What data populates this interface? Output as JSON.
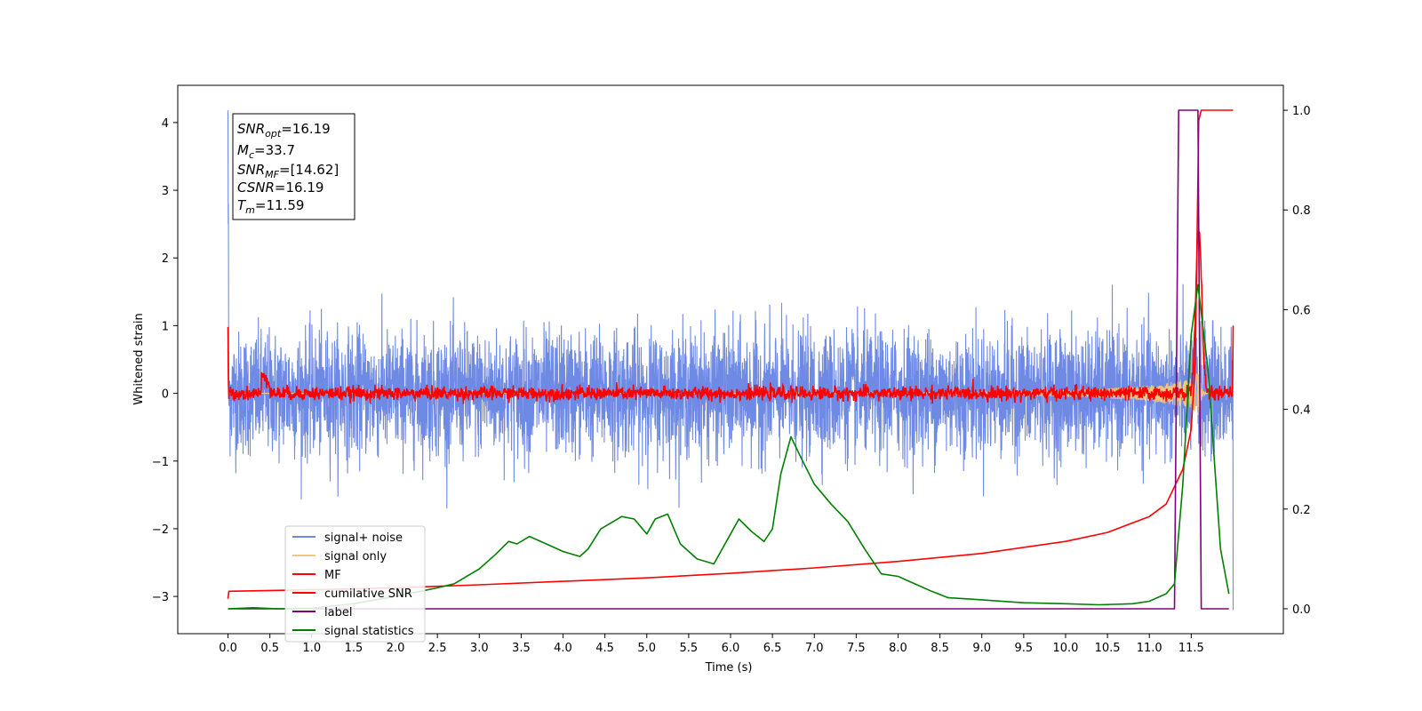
{
  "chart_data": {
    "type": "line",
    "xlabel": "Time (s)",
    "ylabel": "Whitened strain",
    "xlim": [
      -0.6,
      12.6
    ],
    "ylim_left": [
      -3.55,
      4.55
    ],
    "ylim_right": [
      -0.05,
      1.05
    ],
    "x_ticks": [
      0.0,
      0.5,
      1.0,
      1.5,
      2.0,
      2.5,
      3.0,
      3.5,
      4.0,
      4.5,
      5.0,
      5.5,
      6.0,
      6.5,
      7.0,
      7.5,
      8.0,
      8.5,
      9.0,
      9.5,
      10.0,
      10.5,
      11.0,
      11.5
    ],
    "x_tick_labels": [
      "0.0",
      "0.5",
      "1.0",
      "1.5",
      "2.0",
      "2.5",
      "3.0",
      "3.5",
      "4.0",
      "4.5",
      "5.0",
      "5.5",
      "6.0",
      "6.5",
      "7.0",
      "7.5",
      "8.0",
      "8.5",
      "9.0",
      "9.5",
      "10.0",
      "10.5",
      "11.0",
      "11.5"
    ],
    "y_left_ticks": [
      -3,
      -2,
      -1,
      0,
      1,
      2,
      3,
      4
    ],
    "y_left_tick_labels": [
      "−3",
      "−2",
      "−1",
      "0",
      "1",
      "2",
      "3",
      "4"
    ],
    "y_right_ticks": [
      0.0,
      0.2,
      0.4,
      0.6,
      0.8,
      1.0
    ],
    "y_right_tick_labels": [
      "0.0",
      "0.2",
      "0.4",
      "0.6",
      "0.8",
      "1.0"
    ],
    "grid": false,
    "legend_position": "lower-left",
    "info_box": {
      "snr_opt_label": "SNR",
      "snr_opt_sub": "opt",
      "snr_opt_value": "=16.19",
      "mc_label": "M",
      "mc_sub": "c",
      "mc_value": "=33.7",
      "snr_mf_label": "SNR",
      "snr_mf_sub": "MF",
      "snr_mf_value": "=[14.62]",
      "csnr_label": "CSNR",
      "csnr_value": "=16.19",
      "tm_label": "T",
      "tm_sub": "m",
      "tm_value": "=11.59"
    },
    "series": [
      {
        "name": "signal+ noise",
        "color": "#6f8ae4",
        "axis": "left",
        "description_of_shape": "white noise with std approx 0.45, spanning about -1.7 to 1.8; initial spike near 4.2 at t=0 and drop to about -3.2 at t=12",
        "noise_std": 0.45,
        "x_range": [
          0.0,
          12.0
        ]
      },
      {
        "name": "signal only",
        "color": "#f5c77e",
        "axis": "left",
        "x_range": [
          0.0,
          12.0
        ],
        "chirp_peak_time": 11.59,
        "chirp_peak_amplitude": 0.35
      },
      {
        "name": "MF",
        "color": "#ff0000",
        "axis": "left",
        "x_range": [
          0.0,
          12.0
        ],
        "noise_std": 0.05,
        "start_value": 0.98,
        "bump_x": [
          0.4,
          0.5
        ],
        "bump_value": 0.3,
        "peak_time": 11.59,
        "peak_value": 2.45,
        "end_value": 1.0
      },
      {
        "name": "cumilative SNR",
        "color": "#ff0000",
        "axis": "right",
        "x": [
          0.0,
          0.01,
          1.0,
          2.0,
          3.0,
          4.0,
          5.0,
          6.0,
          7.0,
          8.0,
          9.0,
          10.0,
          10.5,
          11.0,
          11.2,
          11.4,
          11.5,
          11.55,
          11.59,
          11.62,
          12.0
        ],
        "y": [
          0.02,
          0.035,
          0.038,
          0.042,
          0.048,
          0.055,
          0.062,
          0.071,
          0.082,
          0.095,
          0.111,
          0.135,
          0.153,
          0.185,
          0.21,
          0.28,
          0.36,
          0.5,
          0.98,
          1.0,
          1.0
        ]
      },
      {
        "name": "label",
        "color": "#800080",
        "axis": "right",
        "x": [
          0.0,
          11.3,
          11.35,
          11.58,
          11.62,
          11.95
        ],
        "y": [
          0.0,
          0.0,
          1.0,
          1.0,
          0.0,
          0.0
        ]
      },
      {
        "name": "signal statistics",
        "color": "#008000",
        "axis": "right",
        "x": [
          0.0,
          0.3,
          0.6,
          1.0,
          1.5,
          2.0,
          2.3,
          2.5,
          2.7,
          3.0,
          3.2,
          3.35,
          3.45,
          3.6,
          3.8,
          4.0,
          4.2,
          4.3,
          4.45,
          4.6,
          4.7,
          4.85,
          5.0,
          5.1,
          5.25,
          5.4,
          5.6,
          5.8,
          6.0,
          6.1,
          6.25,
          6.4,
          6.5,
          6.6,
          6.72,
          6.85,
          7.0,
          7.2,
          7.4,
          7.6,
          7.8,
          8.0,
          8.2,
          8.4,
          8.6,
          8.8,
          9.0,
          9.5,
          10.0,
          10.4,
          10.8,
          11.0,
          11.2,
          11.3,
          11.4,
          11.5,
          11.58,
          11.7,
          11.85,
          11.95
        ],
        "y": [
          0.0,
          0.002,
          0.0,
          0.001,
          0.01,
          0.025,
          0.035,
          0.042,
          0.05,
          0.08,
          0.11,
          0.135,
          0.13,
          0.145,
          0.13,
          0.115,
          0.105,
          0.12,
          0.16,
          0.175,
          0.185,
          0.18,
          0.15,
          0.18,
          0.19,
          0.13,
          0.1,
          0.09,
          0.15,
          0.18,
          0.155,
          0.135,
          0.16,
          0.27,
          0.345,
          0.3,
          0.25,
          0.21,
          0.175,
          0.12,
          0.07,
          0.065,
          0.05,
          0.035,
          0.022,
          0.02,
          0.018,
          0.012,
          0.01,
          0.008,
          0.01,
          0.015,
          0.03,
          0.05,
          0.25,
          0.55,
          0.65,
          0.48,
          0.12,
          0.03
        ]
      }
    ]
  }
}
